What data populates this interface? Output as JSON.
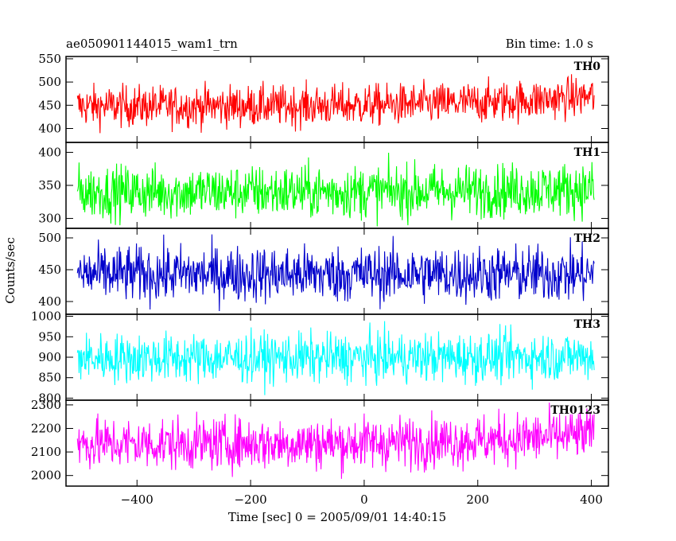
{
  "header": {
    "title": "ae050901144015_wam1_trn",
    "bin_time": "Bin time: 1.0 s"
  },
  "chart_data": {
    "type": "line",
    "title": "ae050901144015_wam1_trn",
    "subtitle": "Bin time: 1.0 s",
    "xlabel": "Time [sec] 0 = 2005/09/01 14:40:15",
    "ylabel": "Counts/sec",
    "xlim": [
      -525,
      430
    ],
    "x_ticks": [
      -400,
      -200,
      0,
      200,
      400
    ],
    "x_tick_labels": [
      "−400",
      "−200",
      "0",
      "200",
      "400"
    ],
    "x_start": -505,
    "x_end": 405,
    "bin_time": 1.0,
    "grid": false,
    "panels": [
      {
        "name": "TH0",
        "color": "#ff0000",
        "ylim": [
          370,
          555
        ],
        "y_ticks": [
          400,
          450,
          500,
          550
        ],
        "mean": 448,
        "noise": 22,
        "trend_end": 22,
        "min": 370,
        "max": 535
      },
      {
        "name": "TH1",
        "color": "#00ff00",
        "ylim": [
          285,
          415
        ],
        "y_ticks": [
          300,
          350,
          400
        ],
        "mean": 340,
        "noise": 20,
        "trend_end": 5,
        "min": 288,
        "max": 412
      },
      {
        "name": "TH2",
        "color": "#0000cc",
        "ylim": [
          380,
          515
        ],
        "y_ticks": [
          400,
          450,
          500
        ],
        "mean": 443,
        "noise": 22,
        "trend_end": 0,
        "min": 385,
        "max": 512
      },
      {
        "name": "TH3",
        "color": "#00ffff",
        "ylim": [
          795,
          1005
        ],
        "y_ticks": [
          800,
          850,
          900,
          950,
          1000
        ],
        "y_tick_labels": [
          "800",
          "850",
          "900",
          "950",
          "1000"
        ],
        "mean": 898,
        "noise": 30,
        "trend_end": 5,
        "min": 800,
        "max": 1000
      },
      {
        "name": "TH0123",
        "color": "#ff00ff",
        "ylim": [
          1955,
          2320
        ],
        "y_ticks": [
          2000,
          2100,
          2200,
          2300
        ],
        "mean": 2135,
        "noise": 55,
        "trend_end": 40,
        "min": 1960,
        "max": 2310
      }
    ]
  }
}
